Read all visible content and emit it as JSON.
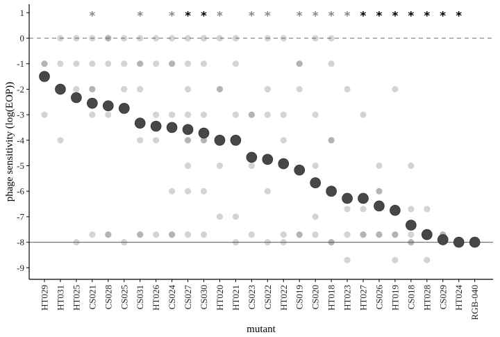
{
  "chart_data": {
    "type": "scatter",
    "title": "",
    "xlabel": "mutant",
    "ylabel": "phage sensitivity (log(EOP))",
    "ylim": [
      -10,
      1.5
    ],
    "yticks": [
      1,
      0,
      -1,
      -2,
      -3,
      -4,
      -5,
      -6,
      -7,
      -8,
      -9
    ],
    "categories": [
      "HT029",
      "HT031",
      "HT025",
      "CS021",
      "CS028",
      "CS025",
      "CS031",
      "HT026",
      "CS024",
      "CS027",
      "CS030",
      "HT020",
      "HT021",
      "CS023",
      "CS022",
      "HT022",
      "CS019",
      "CS020",
      "HT018",
      "HT023",
      "HT027",
      "CS026",
      "HT019",
      "CS018",
      "HT028",
      "CS029",
      "HT024",
      "RGB-040"
    ],
    "reference_lines": [
      {
        "y": 0,
        "style": "dashed"
      },
      {
        "y": -8,
        "style": "solid"
      }
    ],
    "significance": [
      {
        "category": "CS021",
        "label": "*",
        "shade": "gray"
      },
      {
        "category": "CS031",
        "label": "*",
        "shade": "gray"
      },
      {
        "category": "CS024",
        "label": "*",
        "shade": "gray"
      },
      {
        "category": "CS027",
        "label": "*",
        "shade": "black"
      },
      {
        "category": "CS030",
        "label": "*",
        "shade": "black"
      },
      {
        "category": "HT020",
        "label": "*",
        "shade": "gray"
      },
      {
        "category": "CS023",
        "label": "*",
        "shade": "gray"
      },
      {
        "category": "CS022",
        "label": "*",
        "shade": "gray"
      },
      {
        "category": "CS019",
        "label": "*",
        "shade": "gray"
      },
      {
        "category": "CS020",
        "label": "*",
        "shade": "gray"
      },
      {
        "category": "HT018",
        "label": "*",
        "shade": "gray"
      },
      {
        "category": "HT023",
        "label": "*",
        "shade": "gray"
      },
      {
        "category": "HT027",
        "label": "*",
        "shade": "black"
      },
      {
        "category": "CS026",
        "label": "*",
        "shade": "black"
      },
      {
        "category": "HT019",
        "label": "*",
        "shade": "black"
      },
      {
        "category": "CS018",
        "label": "*",
        "shade": "black"
      },
      {
        "category": "HT028",
        "label": "*",
        "shade": "black"
      },
      {
        "category": "CS029",
        "label": "*",
        "shade": "black"
      },
      {
        "category": "HT024",
        "label": "*",
        "shade": "black"
      }
    ],
    "series": [
      {
        "kind": "mean",
        "values": [
          -1.5,
          -2.0,
          -2.33,
          -2.55,
          -2.65,
          -2.75,
          -3.33,
          -3.45,
          -3.5,
          -3.58,
          -3.72,
          -4.0,
          -4.0,
          -4.67,
          -4.75,
          -4.92,
          -5.17,
          -5.67,
          -6.0,
          -6.28,
          -6.28,
          -6.58,
          -6.75,
          -7.33,
          -7.7,
          -7.9,
          -8.0,
          -8.0
        ]
      },
      {
        "kind": "replicates",
        "values": [
          [
            -1,
            -1,
            -3
          ],
          [
            0,
            -1,
            -4
          ],
          [
            0,
            -1,
            -2,
            -8
          ],
          [
            0,
            -1,
            -2,
            -2,
            -3,
            -7.7
          ],
          [
            0,
            0,
            -1,
            -3,
            -7.7,
            -7.7
          ],
          [
            0,
            -1,
            -2,
            -8
          ],
          [
            0,
            -1,
            -1,
            -2,
            -4,
            -7.7,
            -7.7
          ],
          [
            0,
            -1,
            -3,
            -4,
            -7.7
          ],
          [
            0,
            -1,
            -1,
            -3,
            -6,
            -7.7,
            -7.7
          ],
          [
            0,
            -1,
            -2,
            -3,
            -4,
            -4,
            -5,
            -6,
            -7.7
          ],
          [
            0,
            -1,
            -3,
            -4,
            -4,
            -6,
            -7.7
          ],
          [
            0,
            -2,
            -2,
            -5,
            -7
          ],
          [
            0,
            -1,
            -3,
            -7,
            -8
          ],
          [
            -3,
            -3,
            -5,
            -7.7
          ],
          [
            0,
            -2,
            -3,
            -6,
            -8
          ],
          [
            0,
            -3,
            -4,
            -7.7,
            -8
          ],
          [
            -1,
            -1,
            -2,
            -7.7,
            -7.7
          ],
          [
            0,
            -3,
            -5,
            -7,
            -7.7
          ],
          [
            0,
            -1,
            -4,
            -4,
            -8,
            -8
          ],
          [
            -2,
            -6.7,
            -7.7,
            -8.7
          ],
          [
            -3,
            -6.7,
            -7.7,
            -7.7
          ],
          [
            -5,
            -6,
            -6,
            -7.7,
            -7.7
          ],
          [
            -2,
            -6.7,
            -7.7,
            -7.7,
            -8.7
          ],
          [
            -5,
            -6.7,
            -7.7,
            -8,
            -8
          ],
          [
            -6.7,
            -7.7,
            -7.7,
            -8.7
          ],
          [
            -7.7,
            -7.7,
            -8
          ],
          [
            -8,
            -8,
            -8
          ],
          [
            -8,
            -8,
            -8
          ]
        ]
      }
    ]
  }
}
